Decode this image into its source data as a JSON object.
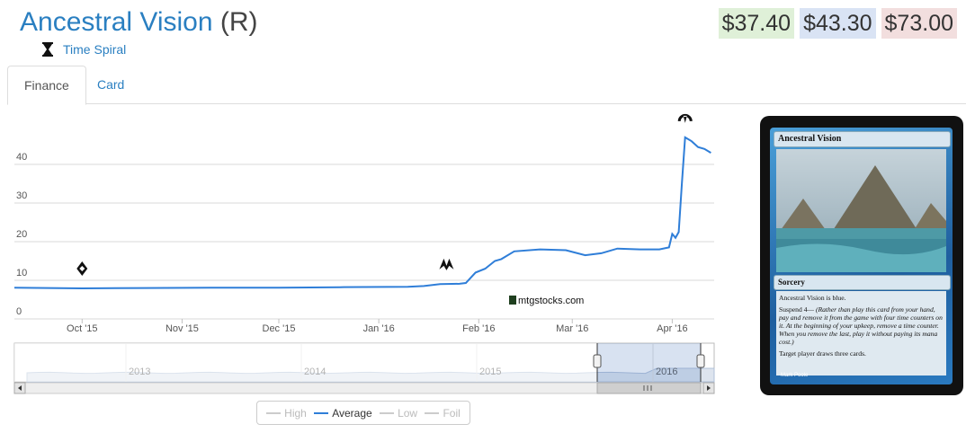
{
  "card": {
    "name": "Ancestral Vision",
    "rarity": "(R)",
    "set_name": "Time Spiral",
    "set_icon": "hourglass-icon"
  },
  "prices": {
    "low": "$37.40",
    "average": "$43.30",
    "high": "$73.00",
    "colors": {
      "low_bg": "#dff0d8",
      "average_bg": "#d9e3f4",
      "high_bg": "#f2dede"
    }
  },
  "tabs": [
    {
      "label": "Finance",
      "active": true
    },
    {
      "label": "Card",
      "active": false
    }
  ],
  "chart_data": {
    "type": "line",
    "watermark": "mtgstocks.com",
    "ylim": [
      0,
      50
    ],
    "yticks": [
      0,
      10,
      20,
      30,
      40
    ],
    "xticks": [
      "Oct '15",
      "Nov '15",
      "Dec '15",
      "Jan '16",
      "Feb '16",
      "Mar '16",
      "Apr '16"
    ],
    "series_color": "#2f7ed8",
    "series": [
      {
        "name": "Average",
        "x": [
          "2015-09-10",
          "2015-10-01",
          "2015-10-20",
          "2015-11-10",
          "2015-12-01",
          "2015-12-20",
          "2016-01-10",
          "2016-01-15",
          "2016-01-20",
          "2016-01-26",
          "2016-01-28",
          "2016-01-31",
          "2016-02-03",
          "2016-02-06",
          "2016-02-08",
          "2016-02-12",
          "2016-02-20",
          "2016-02-28",
          "2016-03-05",
          "2016-03-10",
          "2016-03-15",
          "2016-03-22",
          "2016-03-28",
          "2016-03-31",
          "2016-04-01",
          "2016-04-02",
          "2016-04-03",
          "2016-04-04",
          "2016-04-05",
          "2016-04-07",
          "2016-04-09",
          "2016-04-11",
          "2016-04-13"
        ],
        "values": [
          8.1,
          7.9,
          8.0,
          8.1,
          8.1,
          8.2,
          8.3,
          8.5,
          9.0,
          9.1,
          9.3,
          12.0,
          13.0,
          15.0,
          15.5,
          17.5,
          18.0,
          17.8,
          16.5,
          17.0,
          18.2,
          18.0,
          18.0,
          18.5,
          22.0,
          21.0,
          22.5,
          35.0,
          47.0,
          46.0,
          44.5,
          44.0,
          43.0
        ]
      }
    ],
    "event_markers": [
      {
        "date": "2015-10-01",
        "icon": "set-symbol-icon"
      },
      {
        "date": "2016-01-22",
        "icon": "set-symbol-icon"
      },
      {
        "date": "2016-04-05",
        "icon": "set-symbol-icon"
      }
    ],
    "navigator": {
      "labels": [
        "2013",
        "2014",
        "2015",
        "2016"
      ]
    },
    "legend": [
      {
        "label": "High",
        "active": false
      },
      {
        "label": "Average",
        "active": true
      },
      {
        "label": "Low",
        "active": false
      },
      {
        "label": "Foil",
        "active": false
      }
    ]
  },
  "card_image": {
    "name": "Ancestral Vision",
    "type_line": "Sorcery",
    "rules": [
      "Ancestral Vision is blue.",
      "Suspend 4—",
      "(Rather than play this card from your hand, pay and remove it from the game with four time counters on it. At the beginning of your upkeep, remove a time counter. When you remove the last, play it without paying its mana cost.)",
      "Target player draws three cards."
    ],
    "artist": "Mark Poole"
  }
}
